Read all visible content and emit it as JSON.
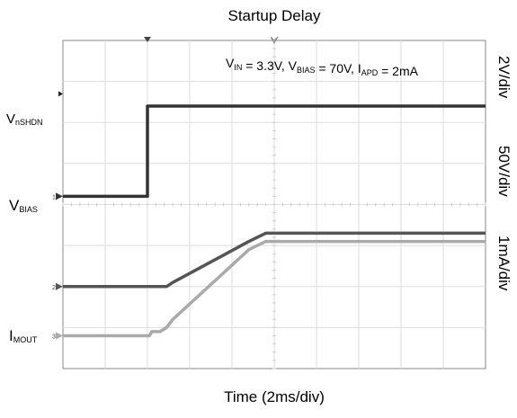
{
  "chart_data": {
    "type": "line",
    "title": "Startup Delay",
    "xlabel": "Time (2ms/div)",
    "annotation": {
      "parts": [
        {
          "t": "V",
          "s": "IN"
        },
        {
          "t": " = 3.3V, V",
          "s": "BIAS"
        },
        {
          "t": " = 70V, I",
          "s": "APD"
        },
        {
          "t": " = 2mA",
          "s": ""
        }
      ]
    },
    "grid": {
      "x_divisions": 10,
      "y_divisions": 8
    },
    "xlim": [
      0,
      20
    ],
    "scales": [
      "2V/div",
      "50V/div",
      "1mA/div"
    ],
    "series": [
      {
        "name_main": "V",
        "name_sub": "nSHDN",
        "channel": "1",
        "x": [
          0,
          4,
          4,
          20
        ],
        "div": [
          4.2,
          4.2,
          6.4,
          6.4
        ],
        "color": "#333333"
      },
      {
        "name_main": "V",
        "name_sub": "BIAS",
        "channel": "2",
        "x": [
          0,
          4.9,
          5.2,
          8.8,
          9.6,
          20
        ],
        "div": [
          2.0,
          2.0,
          2.1,
          3.1,
          3.3,
          3.3
        ],
        "color": "#555555"
      },
      {
        "name_main": "I",
        "name_sub": "MOUT",
        "channel": "3",
        "x": [
          0,
          4.1,
          4.2,
          4.6,
          4.9,
          5.2,
          8.8,
          9.6,
          20
        ],
        "div": [
          0.8,
          0.8,
          0.9,
          0.9,
          1.0,
          1.2,
          2.9,
          3.1,
          3.1
        ],
        "color": "#aaaaaa"
      }
    ]
  }
}
